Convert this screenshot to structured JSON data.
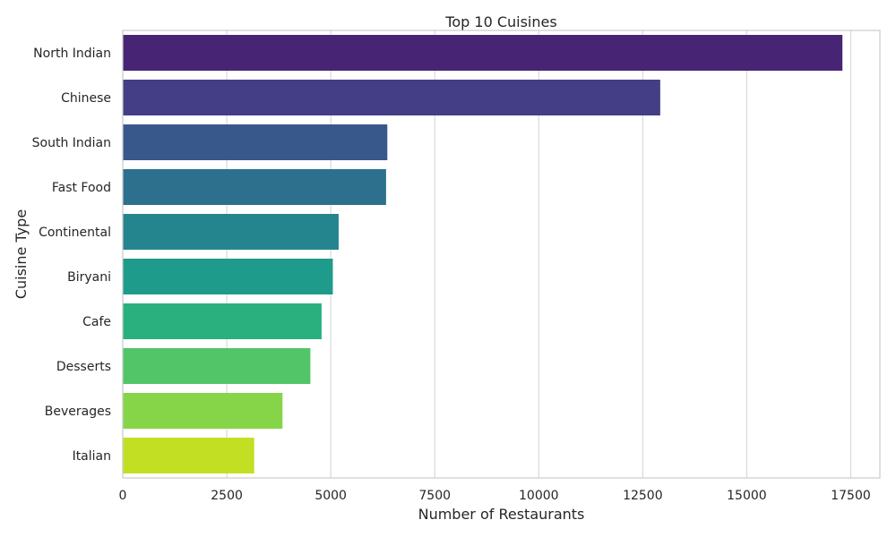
{
  "chart_data": {
    "type": "bar",
    "orientation": "horizontal",
    "title": "Top 10 Cuisines",
    "xlabel": "Number of Restaurants",
    "ylabel": "Cuisine Type",
    "xlim": [
      0,
      18200
    ],
    "xticks": [
      0,
      2500,
      5000,
      7500,
      10000,
      12500,
      15000,
      17500
    ],
    "grid": "vertical",
    "categories": [
      "North Indian",
      "Chinese",
      "South Indian",
      "Fast Food",
      "Continental",
      "Biryani",
      "Cafe",
      "Desserts",
      "Beverages",
      "Italian"
    ],
    "values": [
      17300,
      12920,
      6360,
      6330,
      5190,
      5050,
      4780,
      4510,
      3840,
      3160
    ],
    "colors": [
      "#482475",
      "#433e85",
      "#38588c",
      "#2d708e",
      "#25858e",
      "#1e9b8a",
      "#2ab07f",
      "#52c569",
      "#86d549",
      "#c2df23"
    ]
  }
}
